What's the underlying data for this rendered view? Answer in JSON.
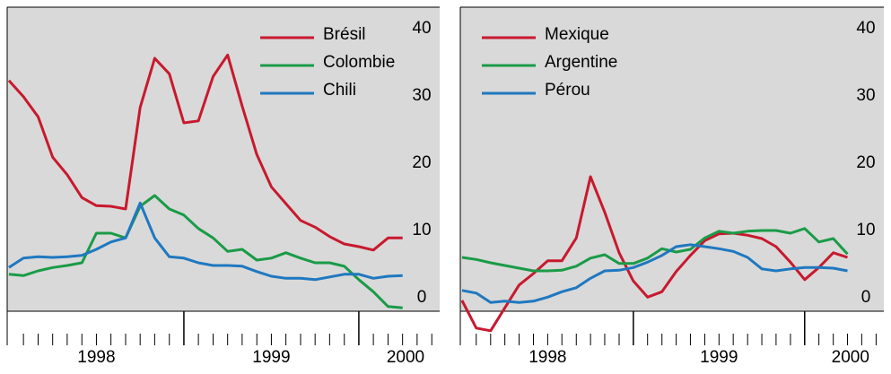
{
  "chart_data": [
    {
      "type": "line",
      "x": [
        1998,
        1998.083,
        1998.167,
        1998.25,
        1998.333,
        1998.417,
        1998.5,
        1998.583,
        1998.667,
        1998.75,
        1998.833,
        1998.917,
        1999,
        1999.083,
        1999.167,
        1999.25,
        1999.333,
        1999.417,
        1999.5,
        1999.583,
        1999.667,
        1999.75,
        1999.833,
        1999.917,
        2000,
        2000.083,
        2000.167,
        2000.25
      ],
      "xlim": [
        1997.99,
        2000.462
      ],
      "xticks": [
        {
          "value": 1998.5,
          "label": "1998"
        },
        {
          "value": 1999.5,
          "label": "1999"
        },
        {
          "value": 2000.267,
          "label": "2000"
        }
      ],
      "xmajorticks": [
        1999,
        2000
      ],
      "xminorticks": [
        1998.083,
        1998.167,
        1998.25,
        1998.333,
        1998.417,
        1998.5,
        1998.583,
        1998.667,
        1998.75,
        1998.833,
        1998.917,
        1999.083,
        1999.167,
        1999.25,
        1999.333,
        1999.417,
        1999.5,
        1999.583,
        1999.667,
        1999.75,
        1999.833,
        1999.917,
        2000.083,
        2000.167,
        2000.25,
        2000.333,
        2000.417
      ],
      "ylim": [
        -2,
        43.2
      ],
      "yticks": [
        0,
        10,
        20,
        30,
        40
      ],
      "grid": false,
      "legend": "upper right",
      "series": [
        {
          "name": "Brésil",
          "color": "#c8192e",
          "values": [
            32.3,
            29.9,
            26.9,
            20.9,
            18.3,
            14.9,
            13.7,
            13.6,
            13.2,
            28.3,
            35.6,
            33.3,
            26,
            26.3,
            32.9,
            36.1,
            28.5,
            21.3,
            16.5,
            14,
            11.5,
            10.5,
            9.1,
            8,
            7.6,
            7.1,
            8.9,
            8.9
          ]
        },
        {
          "name": "Colombie",
          "color": "#1a9b47",
          "values": [
            3.5,
            3.3,
            4,
            4.5,
            4.8,
            5.2,
            9.6,
            9.6,
            8.9,
            13.6,
            15.2,
            13.2,
            12.3,
            10.3,
            8.9,
            6.9,
            7.2,
            5.6,
            5.9,
            6.7,
            5.9,
            5.2,
            5.2,
            4.7,
            2.7,
            0.9,
            -1.3,
            -1.5
          ]
        },
        {
          "name": "Chili",
          "color": "#1f78c0",
          "values": [
            4.5,
            5.9,
            6.1,
            6,
            6.1,
            6.3,
            7.2,
            8.3,
            8.9,
            14.1,
            8.9,
            6.1,
            5.9,
            5.2,
            4.8,
            4.8,
            4.7,
            3.9,
            3.2,
            2.9,
            2.9,
            2.7,
            3.1,
            3.5,
            3.5,
            2.9,
            3.2,
            3.3
          ]
        }
      ]
    },
    {
      "type": "line",
      "x": [
        1998,
        1998.083,
        1998.167,
        1998.25,
        1998.333,
        1998.417,
        1998.5,
        1998.583,
        1998.667,
        1998.75,
        1998.833,
        1998.917,
        1999,
        1999.083,
        1999.167,
        1999.25,
        1999.333,
        1999.417,
        1999.5,
        1999.583,
        1999.667,
        1999.75,
        1999.833,
        1999.917,
        2000,
        2000.083,
        2000.167,
        2000.25
      ],
      "xlim": [
        1997.99,
        2000.462
      ],
      "xticks": [
        {
          "value": 1998.5,
          "label": "1998"
        },
        {
          "value": 1999.5,
          "label": "1999"
        },
        {
          "value": 2000.267,
          "label": "2000"
        }
      ],
      "xmajorticks": [
        1999,
        2000
      ],
      "xminorticks": [
        1998.083,
        1998.167,
        1998.25,
        1998.333,
        1998.417,
        1998.5,
        1998.583,
        1998.667,
        1998.75,
        1998.833,
        1998.917,
        1999.083,
        1999.167,
        1999.25,
        1999.333,
        1999.417,
        1999.5,
        1999.583,
        1999.667,
        1999.75,
        1999.833,
        1999.917,
        2000.083,
        2000.167,
        2000.25,
        2000.333,
        2000.417
      ],
      "ylim": [
        -2,
        43.2
      ],
      "yticks": [
        0,
        10,
        20,
        30,
        40
      ],
      "grid": false,
      "legend": "upper left",
      "series": [
        {
          "name": "Mexique",
          "color": "#c8192e",
          "values": [
            -0.4,
            -4.5,
            -4.9,
            -1.5,
            1.9,
            3.6,
            5.5,
            5.5,
            8.9,
            18,
            12.7,
            6.7,
            2.5,
            0.1,
            0.9,
            3.9,
            6.3,
            8.5,
            9.5,
            9.6,
            9.3,
            8.8,
            7.6,
            5.3,
            2.7,
            4.5,
            6.7,
            6
          ]
        },
        {
          "name": "Argentine",
          "color": "#1a9b47",
          "values": [
            6,
            5.7,
            5.2,
            4.8,
            4.4,
            4,
            4,
            4.1,
            4.7,
            5.9,
            6.4,
            5.1,
            5.1,
            5.9,
            7.3,
            6.8,
            7.2,
            8.9,
            9.9,
            9.6,
            9.9,
            10,
            10,
            9.6,
            10.3,
            8.3,
            8.8,
            6.5
          ]
        },
        {
          "name": "Pérou",
          "color": "#1f78c0",
          "values": [
            1.1,
            0.7,
            -0.7,
            -0.5,
            -0.7,
            -0.5,
            0.1,
            0.9,
            1.5,
            2.9,
            4,
            4.1,
            4.5,
            5.3,
            6.3,
            7.6,
            7.9,
            7.6,
            7.3,
            6.9,
            6,
            4.3,
            4,
            4.3,
            4.5,
            4.5,
            4.4,
            4
          ]
        }
      ]
    }
  ]
}
